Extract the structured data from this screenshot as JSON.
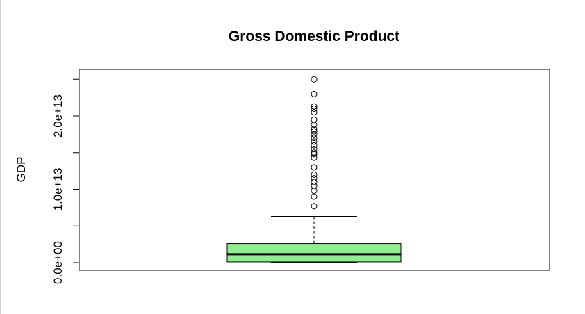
{
  "chart_data": {
    "type": "boxplot",
    "title": "Gross Domestic Product",
    "xlabel": "",
    "ylabel": "GDP",
    "ylim": [
      -200000000000.0,
      25000000000000.0
    ],
    "y_ticks": [
      0,
      5000000000000.0,
      10000000000000.0,
      15000000000000.0,
      20000000000000.0,
      25000000000000.0
    ],
    "y_tick_labels": [
      "0.0e+00",
      "",
      "1.0e+13",
      "",
      "2.0e+13",
      ""
    ],
    "box": {
      "lower_whisker": 1000000000.0,
      "q1": 100000000000.0,
      "median": 1150000000000.0,
      "q3": 2600000000000.0,
      "upper_whisker": 6300000000000.0
    },
    "outliers": [
      25000000000000.0,
      23000000000000.0,
      21300000000000.0,
      21000000000000.0,
      20500000000000.0,
      19500000000000.0,
      18800000000000.0,
      18200000000000.0,
      17900000000000.0,
      17500000000000.0,
      17000000000000.0,
      16500000000000.0,
      16000000000000.0,
      15500000000000.0,
      15000000000000.0,
      14800000000000.0,
      14300000000000.0,
      13000000000000.0,
      12000000000000.0,
      11500000000000.0,
      11000000000000.0,
      10500000000000.0,
      9800000000000.0,
      9000000000000.0,
      7700000000000.0
    ],
    "colors": {
      "box_fill": "#90EE90",
      "stroke": "#000000",
      "median": "#000000",
      "background": "#ffffff"
    }
  }
}
